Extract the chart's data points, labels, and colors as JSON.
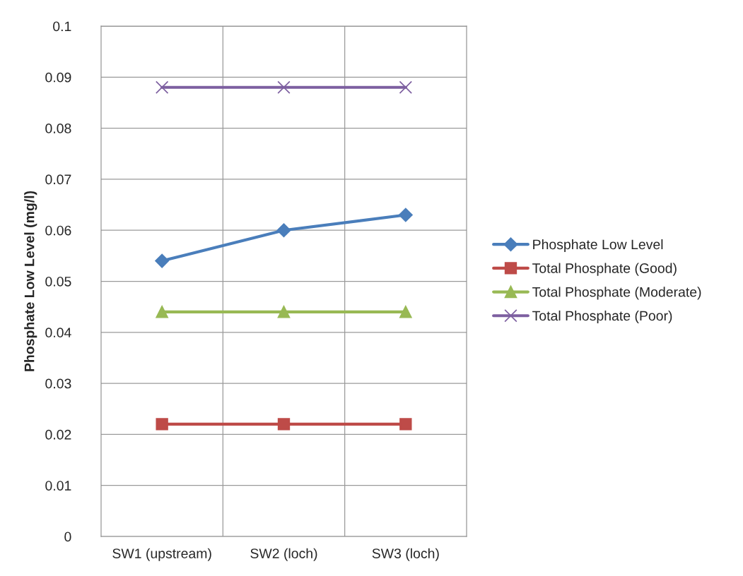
{
  "chart_data": {
    "type": "line",
    "ylabel": "Phosphate Low Level (mg/l)",
    "categories": [
      "SW1 (upstream)",
      "SW2 (loch)",
      "SW3 (loch)"
    ],
    "series": [
      {
        "name": "Phosphate Low Level",
        "color": "#4a7ebb",
        "marker": "diamond",
        "values": [
          0.054,
          0.06,
          0.063
        ]
      },
      {
        "name": "Total Phosphate (Good)",
        "color": "#be4b48",
        "marker": "square",
        "values": [
          0.022,
          0.022,
          0.022
        ]
      },
      {
        "name": "Total Phosphate (Moderate)",
        "color": "#98b954",
        "marker": "triangle",
        "values": [
          0.044,
          0.044,
          0.044
        ]
      },
      {
        "name": "Total Phosphate (Poor)",
        "color": "#7d5fa0",
        "marker": "cross",
        "values": [
          0.088,
          0.088,
          0.088
        ]
      }
    ],
    "ylim": [
      0,
      0.1
    ],
    "yticks": [
      0,
      0.01,
      0.02,
      0.03,
      0.04,
      0.05,
      0.06,
      0.07,
      0.08,
      0.09,
      0.1
    ],
    "grid": true,
    "legend": "right",
    "line_style": "solid"
  }
}
